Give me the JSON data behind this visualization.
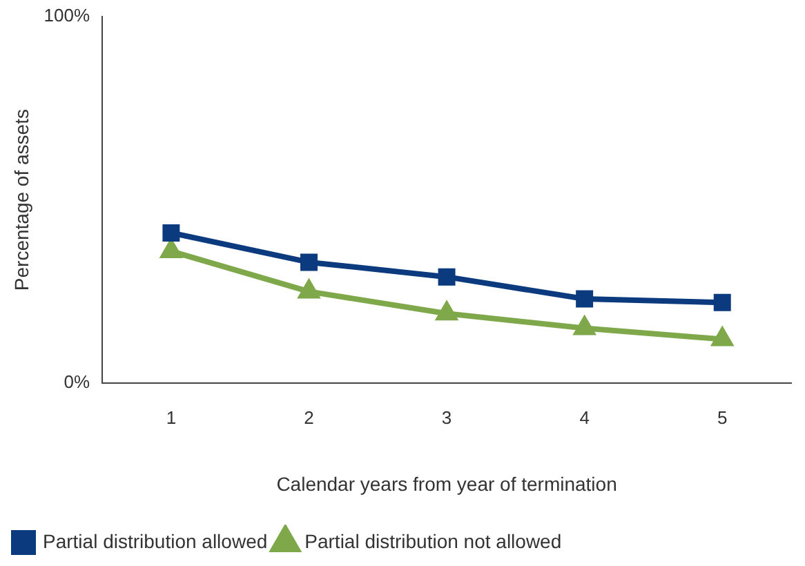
{
  "chart_data": {
    "type": "line",
    "xlabel": "Calendar years from year of termination",
    "ylabel": "Percentage of assets",
    "categories": [
      "1",
      "2",
      "3",
      "4",
      "5"
    ],
    "series": [
      {
        "name": "Partial distribution allowed",
        "color": "#0b3a7e",
        "marker": "square",
        "values": [
          41,
          33,
          29,
          23,
          22
        ]
      },
      {
        "name": "Partial distribution not allowed",
        "color": "#7ea84a",
        "marker": "triangle",
        "values": [
          36,
          25,
          19,
          15,
          12
        ]
      }
    ],
    "ylim": [
      0,
      100
    ],
    "yticks": [
      {
        "value": 0,
        "label": "0%"
      },
      {
        "value": 100,
        "label": "100%"
      }
    ],
    "grid": false,
    "legend": "bottom left",
    "line_style": "solid"
  }
}
